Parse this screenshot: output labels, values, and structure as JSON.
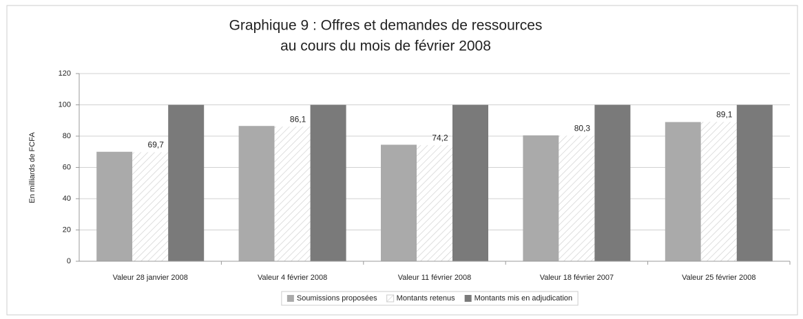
{
  "chart_data": {
    "type": "bar",
    "title": [
      "Graphique 9 : Offres et demandes de ressources",
      "au cours du mois de février 2008"
    ],
    "y_label": "En milliards de FCFA",
    "categories": [
      "Valeur 28 janvier 2008",
      "Valeur 4 février 2008",
      "Valeur 11 février 2008",
      "Valeur 18 février 2007",
      "Valeur 25 février 2008"
    ],
    "series": [
      {
        "name": "Soumissions proposées",
        "color": "#aaaaaa",
        "values": [
          70,
          86.5,
          74.5,
          80.5,
          89
        ]
      },
      {
        "name": "Montants retenus",
        "color": "#ffffff",
        "hatch": true,
        "values": [
          69.7,
          86.1,
          74.2,
          80.3,
          89.1
        ],
        "value_labels": [
          "69,7",
          "86,1",
          "74,2",
          "80,3",
          "89,1"
        ]
      },
      {
        "name": "Montants mis en adjudication",
        "color": "#7a7a7a",
        "values": [
          100,
          100,
          100,
          100,
          100
        ]
      }
    ],
    "ylim": [
      0,
      120
    ],
    "yticks": [
      0,
      20,
      40,
      60,
      80,
      100,
      120
    ],
    "grid": true,
    "legend": "bottom"
  }
}
